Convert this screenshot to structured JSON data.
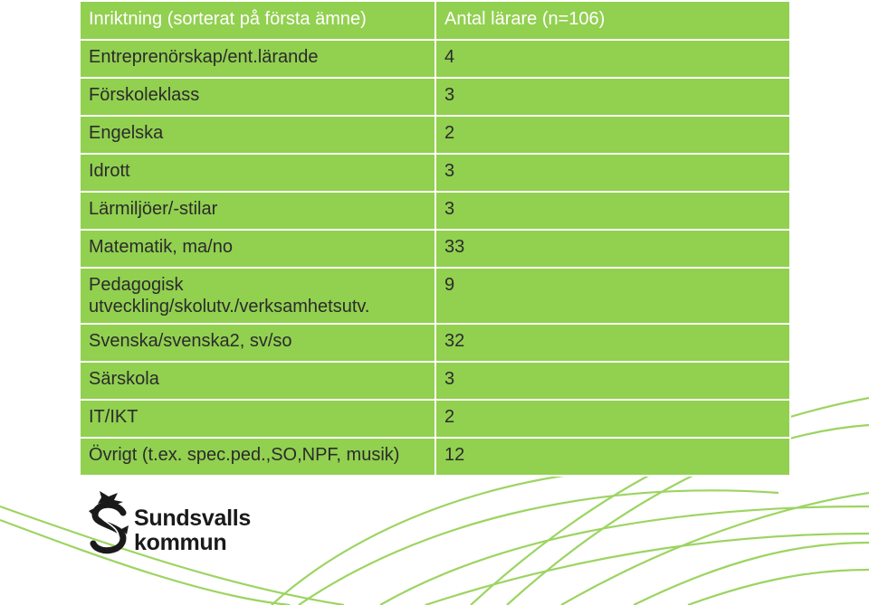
{
  "table": {
    "header": {
      "col1": "Inriktning (sorterat på första ämne)",
      "col2": "Antal lärare (n=106)"
    },
    "rows": [
      {
        "subject": "Entreprenörskap/ent.lärande",
        "count": "4"
      },
      {
        "subject": "Förskoleklass",
        "count": "3"
      },
      {
        "subject": "Engelska",
        "count": "2"
      },
      {
        "subject": "Idrott",
        "count": "3"
      },
      {
        "subject": "Lärmiljöer/-stilar",
        "count": "3"
      },
      {
        "subject": "Matematik, ma/no",
        "count": "33"
      },
      {
        "subject": "Pedagogisk utveckling/skolutv./verksamhetsutv.",
        "count": "9"
      },
      {
        "subject": "Svenska/svenska2, sv/so",
        "count": "32"
      },
      {
        "subject": "Särskola",
        "count": "3"
      },
      {
        "subject": "IT/IKT",
        "count": "2"
      },
      {
        "subject": "Övrigt (t.ex. spec.ped.,SO,NPF, musik)",
        "count": "12"
      }
    ]
  },
  "logo": {
    "line1": "Sundsvalls",
    "line2": "kommun"
  },
  "colors": {
    "table_fill": "#92d050",
    "header_text": "#ffffff",
    "body_text": "#2b2b2b",
    "decor_lines": "#92d050"
  }
}
